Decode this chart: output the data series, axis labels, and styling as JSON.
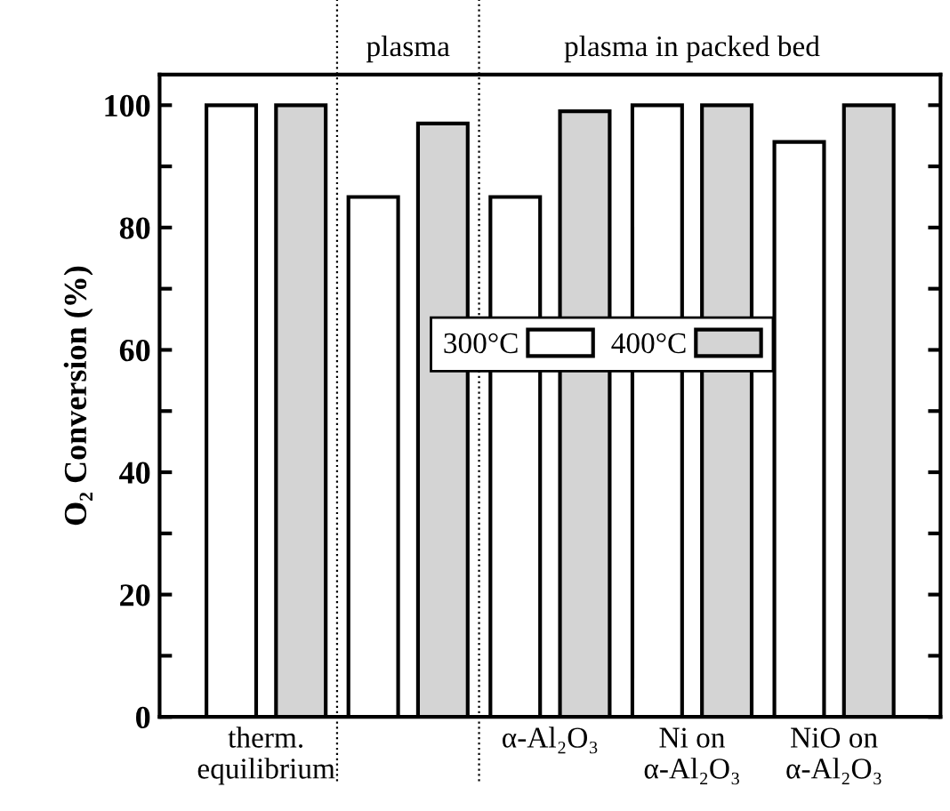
{
  "chart_data": {
    "type": "bar",
    "ylabel": "O₂ Conversion (%)",
    "categories": [
      "therm.\nequilibrium",
      null,
      "α-Al₂O₃",
      "Ni on\nα-Al₂O₃",
      "NiO on\nα-Al₂O₃"
    ],
    "series": [
      {
        "name": "300°C",
        "color": "#ffffff",
        "values": [
          100,
          85,
          85,
          100,
          94
        ]
      },
      {
        "name": "400°C",
        "color": "#d4d4d4",
        "values": [
          100,
          97,
          99,
          100,
          100
        ]
      }
    ],
    "ylim": [
      0,
      105
    ],
    "yticks": [
      0,
      {
        "value": 10,
        "label": null
      },
      20,
      {
        "value": 30,
        "label": null
      },
      40,
      {
        "value": 50,
        "label": null
      },
      60,
      {
        "value": 70,
        "label": null
      },
      80,
      {
        "value": 90,
        "label": null
      },
      100
    ],
    "annotations": [
      "plasma",
      "plasma in packed bed"
    ],
    "legend": "center right",
    "grid": false
  }
}
